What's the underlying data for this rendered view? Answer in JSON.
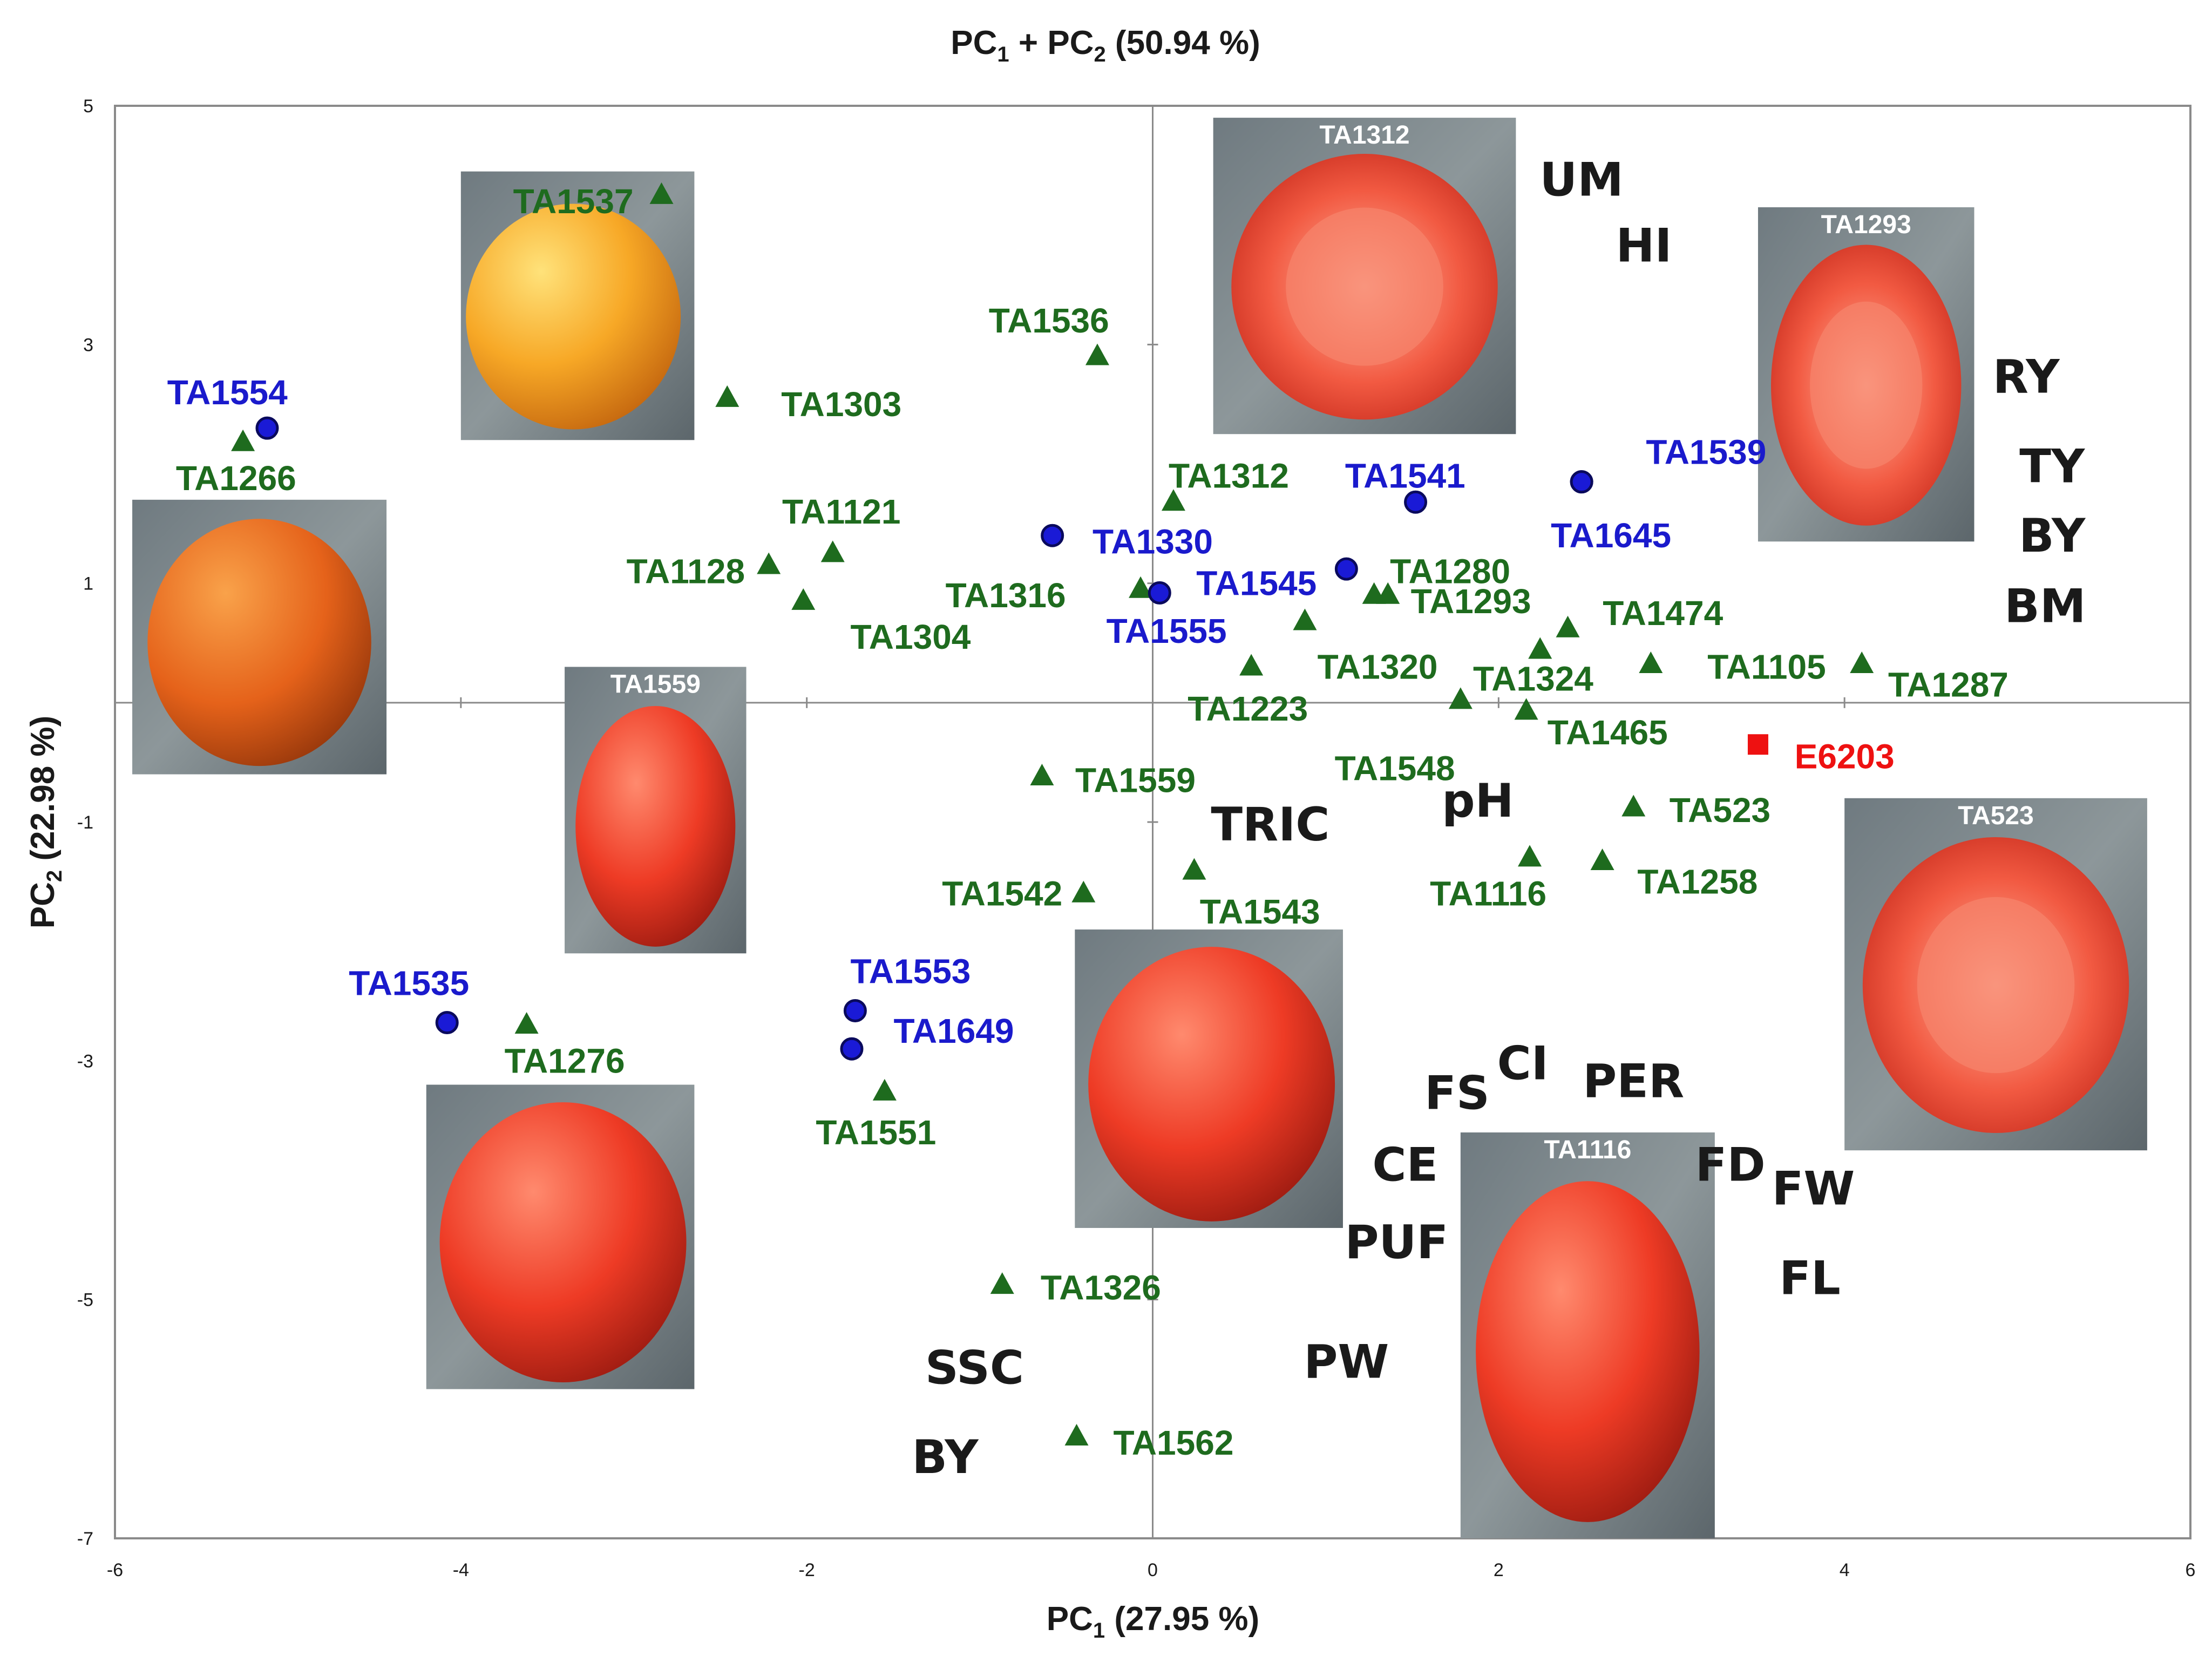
{
  "chart_data": {
    "type": "scatter",
    "title": {
      "main": "PC",
      "sub1": "1",
      "plus": " + PC",
      "sub2": "2",
      "pct": " (50.94 %)"
    },
    "xlabel": {
      "main": "PC",
      "sub": "1",
      "pct": " (27.95 %)"
    },
    "ylabel": {
      "main": "PC",
      "sub": "2",
      "pct": " (22.98 %)"
    },
    "xlim": [
      -6,
      6
    ],
    "ylim": [
      -7,
      5
    ],
    "xticks": [
      -6,
      -4,
      -2,
      0,
      2,
      4,
      6
    ],
    "yticks": [
      -7,
      -5,
      -3,
      -1,
      1,
      3,
      5
    ],
    "xtick_labels": [
      "-6",
      "-4",
      "-2",
      "0",
      "2",
      "4",
      "6"
    ],
    "ytick_labels": [
      "-7",
      "-5",
      "-3",
      "-1",
      "1",
      "3",
      "5"
    ],
    "colors": {
      "triangle": "#1e6b1e",
      "circle_fill": "#1a1ad6",
      "circle_stroke": "#0a0a5c",
      "circle_label": "#1a1acc",
      "square": "#ee1111",
      "variable": "#1a1a1a"
    },
    "series": [
      {
        "name": "triangles",
        "marker": "triangle",
        "points": [
          {
            "label": "TA1537",
            "x": -2.84,
            "y": 4.25,
            "lx": -3.35,
            "ly": 4.2
          },
          {
            "label": "TA1266",
            "x": -5.26,
            "y": 2.18,
            "lx": -5.3,
            "ly": 1.88
          },
          {
            "label": "TA1303",
            "x": -2.46,
            "y": 2.55,
            "lx": -1.8,
            "ly": 2.5
          },
          {
            "label": "TA1536",
            "x": -0.32,
            "y": 2.9,
            "lx": -0.6,
            "ly": 3.2
          },
          {
            "label": "TA1121",
            "x": -1.85,
            "y": 1.25,
            "lx": -1.8,
            "ly": 1.6
          },
          {
            "label": "TA1128",
            "x": -2.22,
            "y": 1.15,
            "lx": -2.7,
            "ly": 1.1
          },
          {
            "label": "TA1304",
            "x": -2.02,
            "y": 0.85,
            "lx": -1.4,
            "ly": 0.55
          },
          {
            "label": "TA1312",
            "x": 0.12,
            "y": 1.68,
            "lx": 0.44,
            "ly": 1.9
          },
          {
            "label": "TA1316",
            "x": -0.07,
            "y": 0.95,
            "lx": -0.85,
            "ly": 0.9
          },
          {
            "label": "TA1280",
            "x": 1.28,
            "y": 0.9,
            "lx": 1.72,
            "ly": 1.1
          },
          {
            "label": "TA1293",
            "x": 1.36,
            "y": 0.9,
            "lx": 1.84,
            "ly": 0.85
          },
          {
            "label": "TA1320",
            "x": 0.88,
            "y": 0.68,
            "lx": 1.3,
            "ly": 0.3
          },
          {
            "label": "TA1474",
            "x": 2.4,
            "y": 0.62,
            "lx": 2.95,
            "ly": 0.75
          },
          {
            "label": "TA1223",
            "x": 0.57,
            "y": 0.3,
            "lx": 0.55,
            "ly": -0.05
          },
          {
            "label": "TA1324",
            "x": 2.24,
            "y": 0.44,
            "lx": 2.2,
            "ly": 0.2
          },
          {
            "label": "TA1105",
            "x": 2.88,
            "y": 0.32,
            "lx": 3.55,
            "ly": 0.3
          },
          {
            "label": "TA1287",
            "x": 4.1,
            "y": 0.32,
            "lx": 4.6,
            "ly": 0.15
          },
          {
            "label": "TA1548",
            "x": 1.78,
            "y": 0.02,
            "lx": 1.4,
            "ly": -0.55
          },
          {
            "label": "TA1465",
            "x": 2.16,
            "y": -0.07,
            "lx": 2.63,
            "ly": -0.25
          },
          {
            "label": "TA1559",
            "x": -0.64,
            "y": -0.62,
            "lx": -0.1,
            "ly": -0.65
          },
          {
            "label": "TA523",
            "x": 2.78,
            "y": -0.88,
            "lx": 3.28,
            "ly": -0.9
          },
          {
            "label": "TA1116",
            "x": 2.18,
            "y": -1.3,
            "lx": 1.94,
            "ly": -1.6
          },
          {
            "label": "TA1258",
            "x": 2.6,
            "y": -1.33,
            "lx": 3.15,
            "ly": -1.5
          },
          {
            "label": "TA1542",
            "x": -0.4,
            "y": -1.6,
            "lx": -0.87,
            "ly": -1.6
          },
          {
            "label": "TA1543",
            "x": 0.24,
            "y": -1.41,
            "lx": 0.62,
            "ly": -1.75
          },
          {
            "label": "TA1276",
            "x": -3.62,
            "y": -2.7,
            "lx": -3.4,
            "ly": -3.0
          },
          {
            "label": "TA1551",
            "x": -1.55,
            "y": -3.26,
            "lx": -1.6,
            "ly": -3.6
          },
          {
            "label": "TA1326",
            "x": -0.87,
            "y": -4.88,
            "lx": -0.3,
            "ly": -4.9
          },
          {
            "label": "TA1562",
            "x": -0.44,
            "y": -6.15,
            "lx": 0.12,
            "ly": -6.2
          }
        ]
      },
      {
        "name": "circles",
        "marker": "circle",
        "points": [
          {
            "label": "TA1554",
            "x": -5.12,
            "y": 2.3,
            "lx": -5.35,
            "ly": 2.6
          },
          {
            "label": "TA1330",
            "x": -0.58,
            "y": 1.4,
            "lx": 0.0,
            "ly": 1.35
          },
          {
            "label": "TA1541",
            "x": 1.52,
            "y": 1.68,
            "lx": 1.46,
            "ly": 1.9
          },
          {
            "label": "TA1539",
            "x": 2.48,
            "y": 1.85,
            "lx": 3.2,
            "ly": 2.1
          },
          {
            "label": "TA1645",
            "x": 2.48,
            "y": 1.85,
            "lx": 2.65,
            "ly": 1.4
          },
          {
            "label": "TA1545",
            "x": 1.12,
            "y": 1.12,
            "lx": 0.6,
            "ly": 1.0
          },
          {
            "label": "TA1555",
            "x": 0.04,
            "y": 0.92,
            "lx": 0.08,
            "ly": 0.6
          },
          {
            "label": "TA1535",
            "x": -4.08,
            "y": -2.68,
            "lx": -4.3,
            "ly": -2.35
          },
          {
            "label": "TA1553",
            "x": -1.72,
            "y": -2.58,
            "lx": -1.4,
            "ly": -2.25
          },
          {
            "label": "TA1649",
            "x": -1.74,
            "y": -2.9,
            "lx": -1.15,
            "ly": -2.75
          }
        ]
      },
      {
        "name": "squares",
        "marker": "square",
        "points": [
          {
            "label": "E6203",
            "x": 3.5,
            "y": -0.35,
            "lx": 4.0,
            "ly": -0.45
          }
        ]
      }
    ],
    "variables": [
      {
        "label": "UM",
        "lx": 2.48,
        "ly": 4.4
      },
      {
        "label": "HI",
        "lx": 2.84,
        "ly": 3.85
      },
      {
        "label": "RY",
        "lx": 5.05,
        "ly": 2.75
      },
      {
        "label": "TY",
        "lx": 5.2,
        "ly": 2.0
      },
      {
        "label": "BY",
        "lx": 5.2,
        "ly": 1.42
      },
      {
        "label": "BM",
        "lx": 5.16,
        "ly": 0.83
      },
      {
        "label": "pH",
        "lx": 1.88,
        "ly": -0.8
      },
      {
        "label": "TRIC",
        "lx": 0.68,
        "ly": -1.0
      },
      {
        "label": "CI",
        "lx": 2.14,
        "ly": -3.0
      },
      {
        "label": "PER",
        "lx": 2.78,
        "ly": -3.15
      },
      {
        "label": "FS",
        "lx": 1.76,
        "ly": -3.25
      },
      {
        "label": "CE",
        "lx": 1.46,
        "ly": -3.85
      },
      {
        "label": "FD",
        "lx": 3.34,
        "ly": -3.85
      },
      {
        "label": "FW",
        "lx": 3.82,
        "ly": -4.05
      },
      {
        "label": "PUF",
        "lx": 1.41,
        "ly": -4.5
      },
      {
        "label": "FL",
        "lx": 3.8,
        "ly": -4.8
      },
      {
        "label": "PW",
        "lx": 1.12,
        "ly": -5.5
      },
      {
        "label": "SSC",
        "lx": -1.03,
        "ly": -5.55
      },
      {
        "label": "BY",
        "lx": -1.2,
        "ly": -6.3
      }
    ],
    "photos": [
      {
        "label": "",
        "style": "yellow-round"
      },
      {
        "label": "",
        "style": "orange-round"
      },
      {
        "label": "TA1559",
        "style": "red-oval"
      },
      {
        "label": "",
        "style": "red-round"
      },
      {
        "label": "TA1312",
        "style": "red-cut"
      },
      {
        "label": "",
        "style": "red-whole"
      },
      {
        "label": "TA1293",
        "style": "red-cut-long"
      },
      {
        "label": "TA523",
        "style": "red-cut-wide"
      },
      {
        "label": "TA1116",
        "style": "red-oval-long"
      }
    ]
  }
}
